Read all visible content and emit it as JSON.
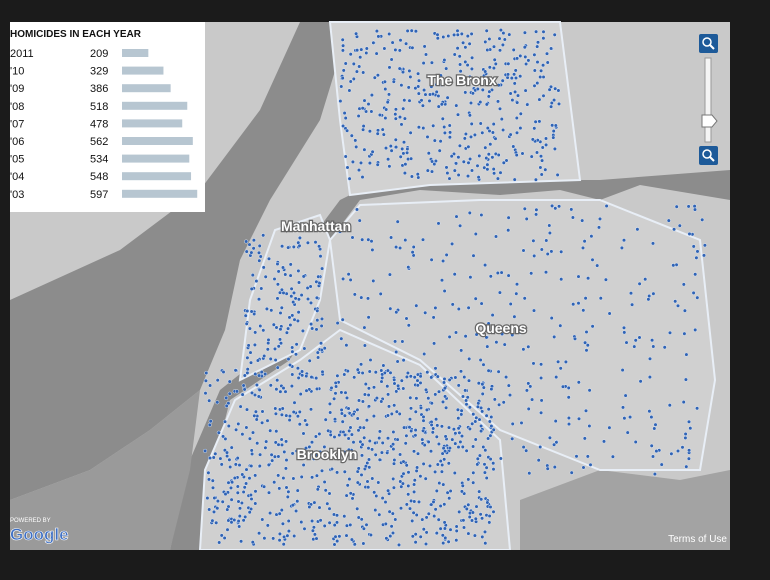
{
  "legend": {
    "title": "HOMICIDES IN EACH YEAR",
    "rows": [
      {
        "year": "2011",
        "count": 209
      },
      {
        "year": "'10",
        "count": 329
      },
      {
        "year": "'09",
        "count": 386
      },
      {
        "year": "'08",
        "count": 518
      },
      {
        "year": "'07",
        "count": 478
      },
      {
        "year": "'06",
        "count": 562
      },
      {
        "year": "'05",
        "count": 534
      },
      {
        "year": "'04",
        "count": 548
      },
      {
        "year": "'03",
        "count": 597
      }
    ]
  },
  "map_labels": {
    "bronx": "The Bronx",
    "manhattan": "Manhattan",
    "queens": "Queens",
    "brooklyn": "Brooklyn"
  },
  "attribution": {
    "powered_by": "POWERED BY",
    "google": "Google",
    "terms": "Terms of Use"
  }
}
